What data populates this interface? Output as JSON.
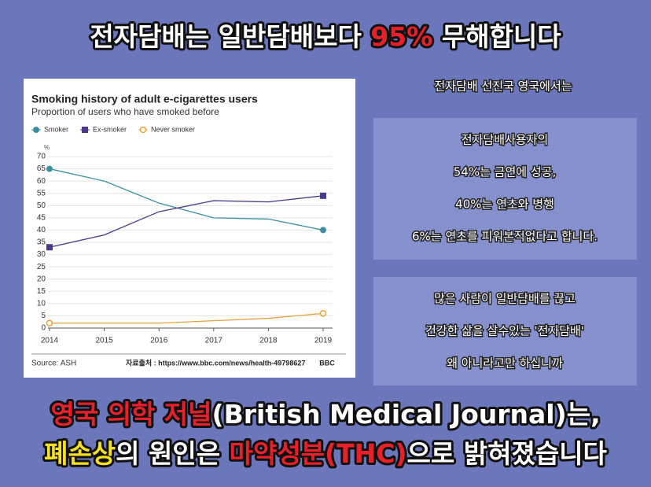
{
  "header": {
    "segments": [
      {
        "text": "전자담배는 일반담배보다 ",
        "color": "#ffffff"
      },
      {
        "text": "95%",
        "color": "#e8202a"
      },
      {
        "text": " 무해합니다",
        "color": "#ffffff"
      }
    ]
  },
  "chart_data": {
    "type": "line",
    "title": "Smoking history of adult e-cigarettes users",
    "subtitle": "Proportion of users who have smoked before",
    "y_unit": "%",
    "x": [
      2014,
      2015,
      2016,
      2017,
      2018,
      2019
    ],
    "series": [
      {
        "name": "Smoker",
        "color": "#3d8fa0",
        "marker": "dot",
        "values": [
          65,
          60,
          51,
          45,
          44.5,
          40
        ]
      },
      {
        "name": "Ex-smoker",
        "color": "#4b3a8c",
        "marker": "square",
        "values": [
          33,
          38,
          47.5,
          52,
          51.5,
          54
        ]
      },
      {
        "name": "Never smoker",
        "color": "#e8a33a",
        "marker": "ring",
        "values": [
          2,
          2,
          2,
          3,
          4,
          6
        ]
      }
    ],
    "xlim": [
      2014,
      2019
    ],
    "xticks": [
      2014,
      2015,
      2016,
      2017,
      2018,
      2019
    ],
    "ylim": [
      0,
      70
    ],
    "yticks": [
      0,
      5,
      10,
      15,
      20,
      25,
      30,
      35,
      40,
      45,
      50,
      55,
      60,
      65,
      70
    ],
    "grid": true,
    "legend": "top-left",
    "source": "Source: ASH",
    "reference": "자료출처 : https://www.bbc.com/news/health-49798627",
    "logo": "BBC"
  },
  "intro": "전자담배 선진국 영국에서는",
  "panel1": {
    "lines": [
      "전자담배사용자의",
      "54%는 금연에 성공,",
      "40%는 연초와 병행",
      "6%는 연초를 피워본적없다고 합니다."
    ]
  },
  "panel2": {
    "lines": [
      "많은 사람이 일반담배를 끊고",
      "건강한 삶을 살수있는 '전자담배'",
      "왜 아니라고만 하십니까"
    ]
  },
  "footer": {
    "line1": [
      {
        "text": "영국 의학 저널",
        "color": "#e8202a"
      },
      {
        "text": "(British Medical Journal)는,",
        "color": "#ffffff"
      }
    ],
    "line2": [
      {
        "text": "폐손상",
        "color": "#f5e023"
      },
      {
        "text": "의 원인은 ",
        "color": "#ffffff"
      },
      {
        "text": "마약성분(THC)",
        "color": "#e8202a"
      },
      {
        "text": "으로 밝혀졌습니다",
        "color": "#ffffff"
      }
    ]
  }
}
